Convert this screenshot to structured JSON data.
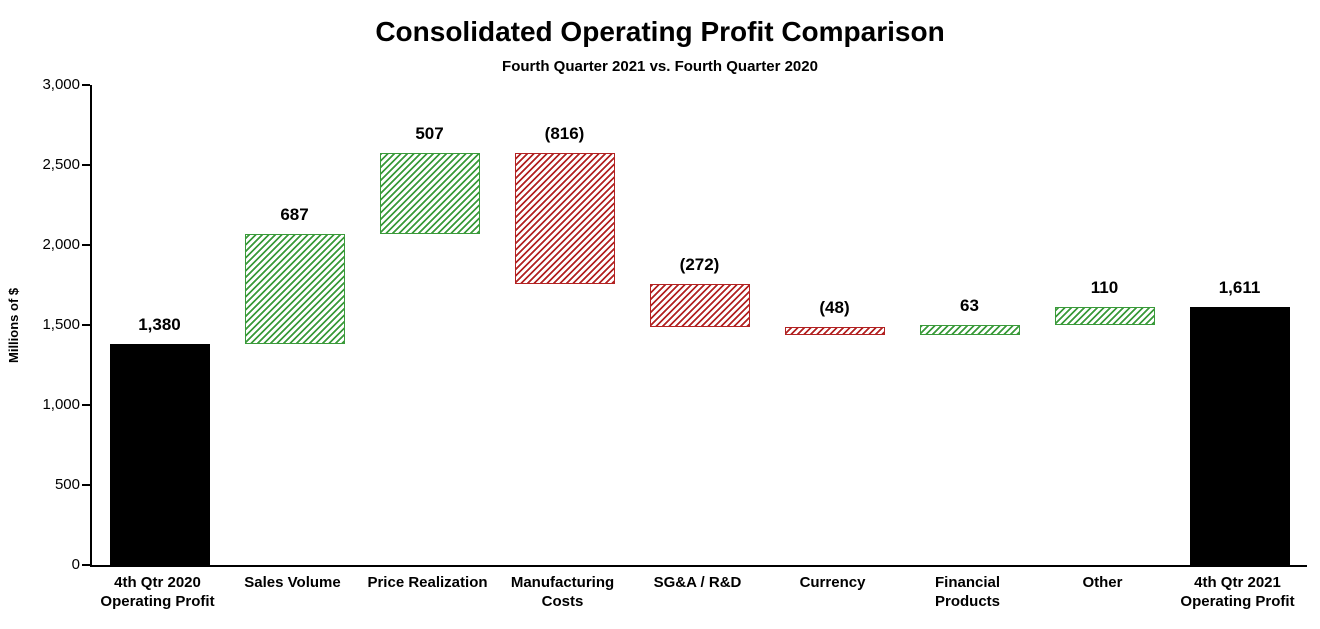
{
  "chart_data": {
    "type": "waterfall",
    "title": "Consolidated Operating Profit Comparison",
    "subtitle": "Fourth Quarter 2021 vs. Fourth Quarter 2020",
    "ylabel": "Millions of $",
    "ylim": [
      0,
      3000
    ],
    "grid": false,
    "legend": "none",
    "colors": {
      "total": "#000000",
      "increase": "#3a9a3a",
      "decrease": "#b22222"
    },
    "yticks": [
      {
        "value": 0,
        "label": "0"
      },
      {
        "value": 500,
        "label": "500"
      },
      {
        "value": 1000,
        "label": "1,000"
      },
      {
        "value": 1500,
        "label": "1,500"
      },
      {
        "value": 2000,
        "label": "2,000"
      },
      {
        "value": 2500,
        "label": "2,500"
      },
      {
        "value": 3000,
        "label": "3,000"
      }
    ],
    "bars": [
      {
        "label_lines": [
          "4th Qtr 2020",
          "Operating Profit"
        ],
        "value": 1380,
        "display": "1,380",
        "kind": "total",
        "running_total": 1380
      },
      {
        "label_lines": [
          "Sales Volume"
        ],
        "value": 687,
        "display": "687",
        "kind": "increase",
        "running_total": 2067
      },
      {
        "label_lines": [
          "Price Realization"
        ],
        "value": 507,
        "display": "507",
        "kind": "increase",
        "running_total": 2574
      },
      {
        "label_lines": [
          "Manufacturing",
          "Costs"
        ],
        "value": -816,
        "display": "(816)",
        "kind": "decrease",
        "running_total": 1758
      },
      {
        "label_lines": [
          "SG&A / R&D"
        ],
        "value": -272,
        "display": "(272)",
        "kind": "decrease",
        "running_total": 1486
      },
      {
        "label_lines": [
          "Currency"
        ],
        "value": -48,
        "display": "(48)",
        "kind": "decrease",
        "running_total": 1438
      },
      {
        "label_lines": [
          "Financial",
          "Products"
        ],
        "value": 63,
        "display": "63",
        "kind": "increase",
        "running_total": 1501
      },
      {
        "label_lines": [
          "Other"
        ],
        "value": 110,
        "display": "110",
        "kind": "increase",
        "running_total": 1611
      },
      {
        "label_lines": [
          "4th Qtr 2021",
          "Operating Profit"
        ],
        "value": 1611,
        "display": "1,611",
        "kind": "total",
        "running_total": 1611
      }
    ]
  }
}
